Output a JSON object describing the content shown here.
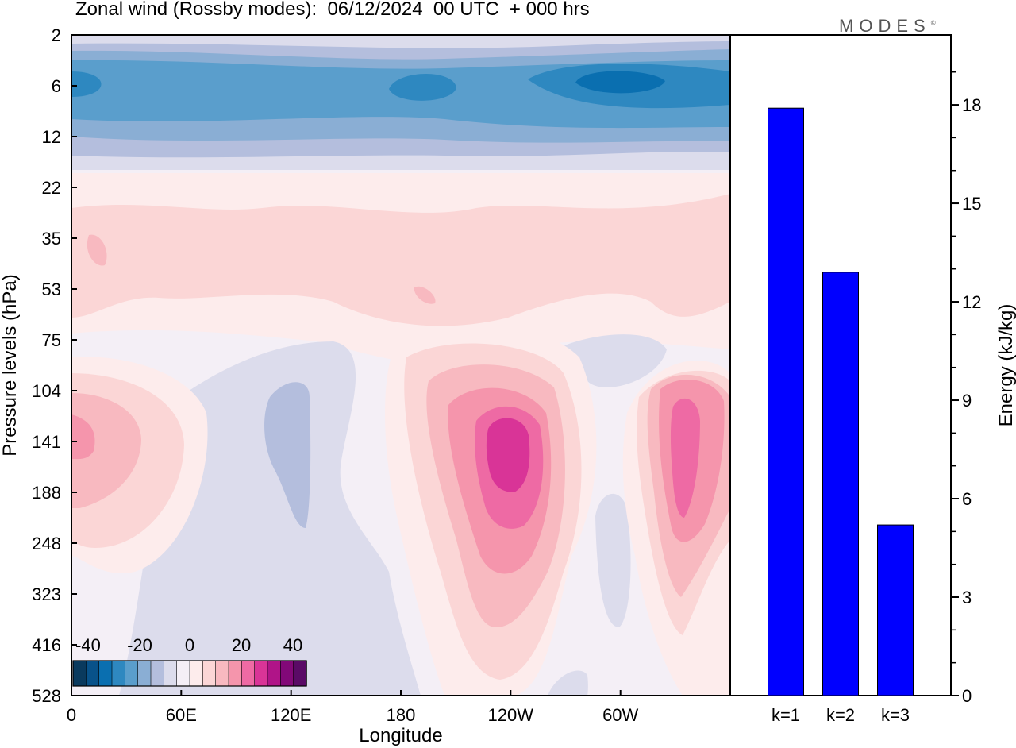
{
  "title": "Zonal wind (Rossby modes):  06/12/2024  00 UTC  + 000 hrs",
  "logo": {
    "text": "MODES",
    "mark": "©"
  },
  "chart_data": [
    {
      "type": "heatmap",
      "xlabel": "Longitude",
      "ylabel": "Pressure levels (hPa)",
      "x_ticks": [
        "0",
        "60E",
        "120E",
        "180",
        "120W",
        "60W"
      ],
      "y_ticks": [
        "2",
        "6",
        "12",
        "22",
        "35",
        "53",
        "75",
        "104",
        "141",
        "188",
        "248",
        "323",
        "416",
        "528"
      ],
      "colorbar": {
        "labels": [
          "-40",
          "-20",
          "0",
          "20",
          "40"
        ],
        "levels": [
          -45,
          -40,
          -35,
          -30,
          -25,
          -20,
          -15,
          -10,
          -5,
          0,
          5,
          10,
          15,
          20,
          25,
          30,
          35,
          40,
          45,
          50
        ],
        "colors": [
          "#0a3a5e",
          "#08528a",
          "#0a6fb0",
          "#2e88c0",
          "#5a9ecc",
          "#8aaed4",
          "#b4bedd",
          "#dcdcec",
          "#f4eff6",
          "#fdecec",
          "#fbd6d6",
          "#f8b9c0",
          "#f595ac",
          "#ee6aa4",
          "#d93497",
          "#b01488",
          "#820878",
          "#5a0a66"
        ]
      }
    },
    {
      "type": "bar",
      "categories": [
        "k=1",
        "k=2",
        "k=3"
      ],
      "values": [
        17.9,
        12.9,
        5.2
      ],
      "ylabel": "Energy (kJ/kg)",
      "ylim": [
        0,
        20
      ],
      "y_ticks": [
        "0",
        "3",
        "6",
        "9",
        "12",
        "15",
        "18"
      ],
      "bar_color": "#0000ff",
      "grid": false
    }
  ]
}
